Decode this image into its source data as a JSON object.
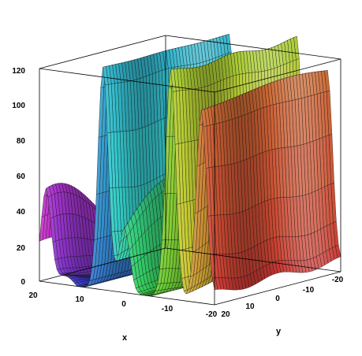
{
  "chart_data": {
    "type": "surface3d",
    "title": "",
    "xlabel": "x",
    "ylabel": "y",
    "zlabel": "",
    "x_range": [
      -20,
      20
    ],
    "y_range": [
      -20,
      20
    ],
    "z_range": [
      0,
      120
    ],
    "x_ticks": [
      "20",
      "10",
      "0",
      "-10",
      "-20"
    ],
    "y_ticks": [
      "20",
      "10",
      "0",
      "-10",
      "-20"
    ],
    "z_ticks": [
      "0",
      "20",
      "40",
      "60",
      "80",
      "100",
      "120"
    ],
    "colormap": "rainbow-hsv",
    "box": true,
    "grid": false,
    "peaks": [
      {
        "x": 18.5,
        "y": 17,
        "height": 54
      },
      {
        "x": 5.5,
        "y": 8,
        "height": 125
      },
      {
        "x": 0.5,
        "y": 6,
        "height": 58
      },
      {
        "x": -10,
        "y": 2,
        "height": 126
      },
      {
        "x": -15,
        "y": -8,
        "height": 30
      },
      {
        "x": -17,
        "y": -17,
        "height": 108
      }
    ]
  }
}
